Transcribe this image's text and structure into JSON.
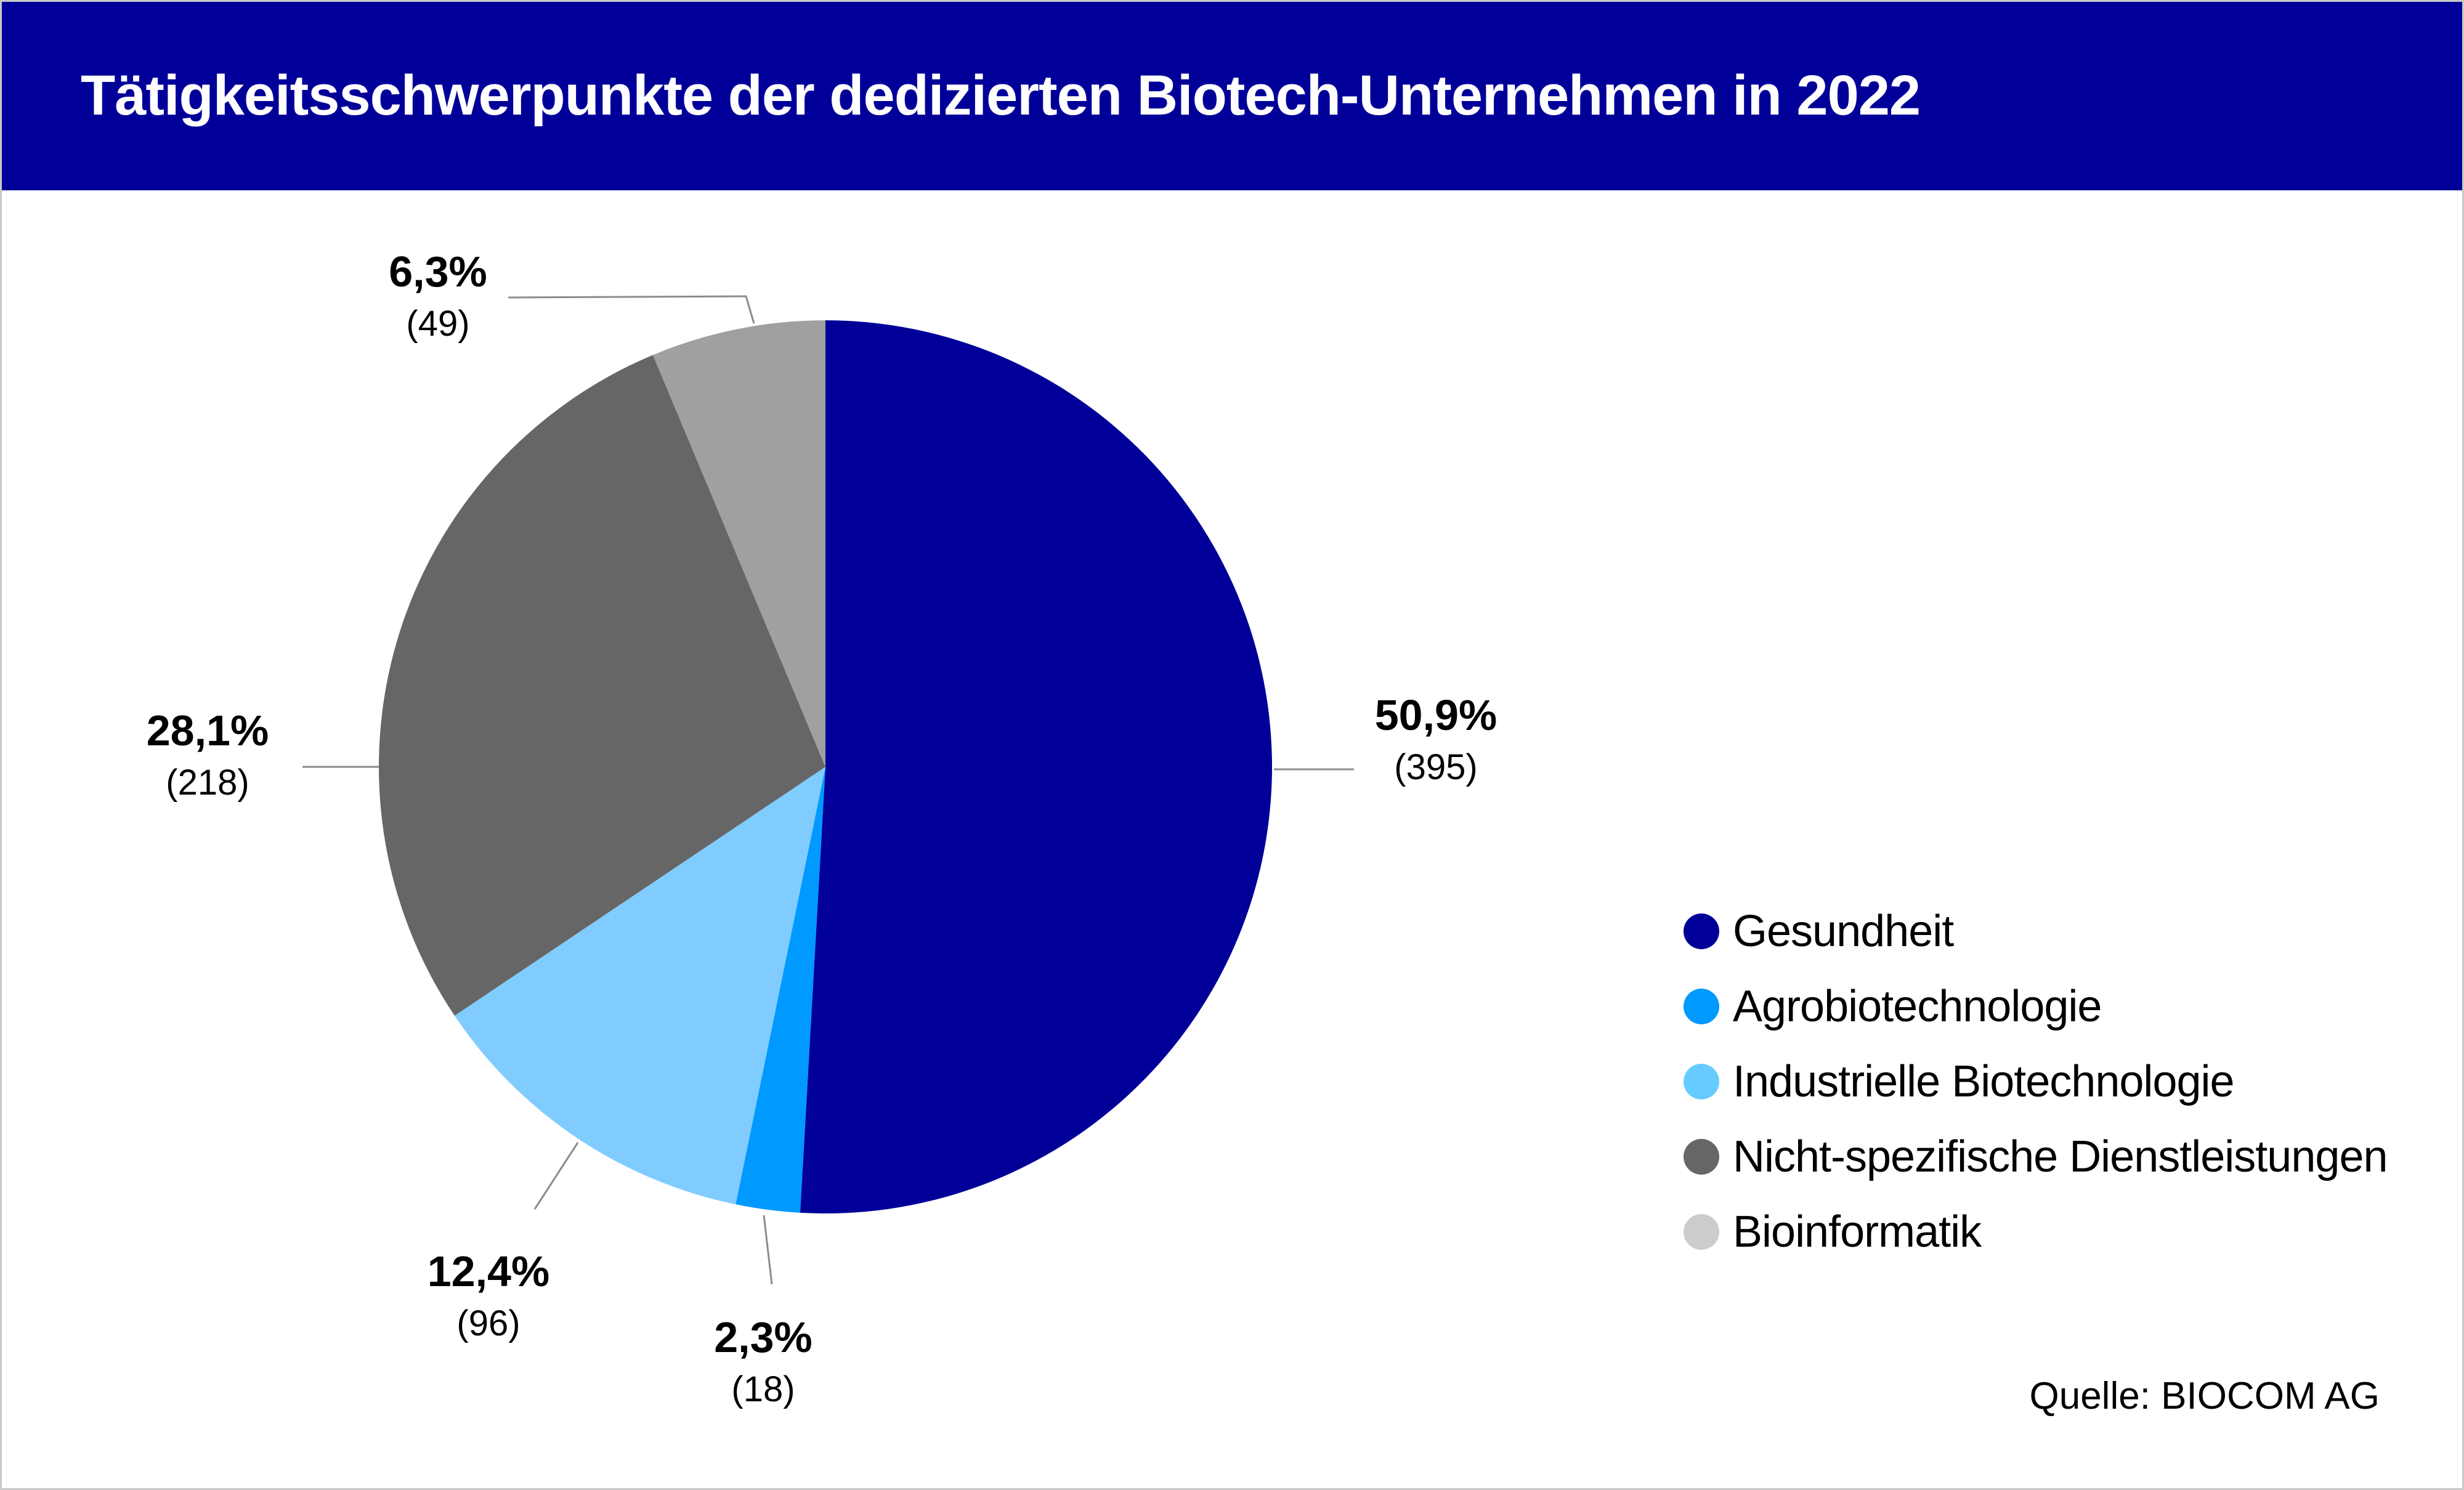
{
  "header": {
    "title": "Tätigkeitsschwerpunkte der dedizierten Biotech-Unternehmen in 2022"
  },
  "chart_data": {
    "type": "pie",
    "title": "Tätigkeitsschwerpunkte der dedizierten Biotech-Unternehmen in 2022",
    "legend_position": "right",
    "start_angle_deg": 0,
    "direction": "clockwise",
    "slices": [
      {
        "name": "Gesundheit",
        "value": 395,
        "percent_label": "50,9%",
        "count_label": "(395)",
        "color": "#000099",
        "legend_color": "#000099"
      },
      {
        "name": "Agrobiotechnologie",
        "value": 18,
        "percent_label": "2,3%",
        "count_label": "(18)",
        "color": "#0099ff",
        "legend_color": "#0099ff"
      },
      {
        "name": "Industrielle Biotechnologie",
        "value": 96,
        "percent_label": "12,4%",
        "count_label": "(96)",
        "color": "#80ccff",
        "legend_color": "#66ccff"
      },
      {
        "name": "Nicht-spezifische Dienstleistungen",
        "value": 218,
        "percent_label": "28,1%",
        "count_label": "(218)",
        "color": "#666666",
        "legend_color": "#666666"
      },
      {
        "name": "Bioinformatik",
        "value": 49,
        "percent_label": "6,3%",
        "count_label": "(49)",
        "color": "#a0a0a0",
        "legend_color": "#cccccc"
      }
    ]
  },
  "source": "Quelle: BIOCOM AG"
}
